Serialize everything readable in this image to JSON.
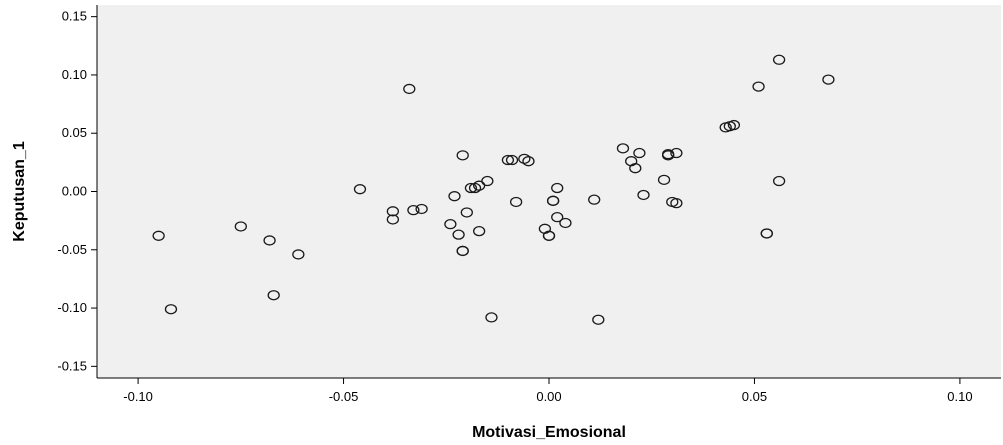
{
  "chart_data": {
    "type": "scatter",
    "xlabel": "Motivasi_Emosional",
    "ylabel": "Keputusan_1",
    "xlim": [
      -0.11,
      0.11
    ],
    "ylim": [
      -0.16,
      0.16
    ],
    "x_ticks": [
      "-0.10",
      "-0.05",
      "0.00",
      "0.05",
      "0.10"
    ],
    "x_tick_values": [
      -0.1,
      -0.05,
      0.0,
      0.05,
      0.1
    ],
    "y_ticks": [
      "0.15",
      "0.10",
      "0.05",
      "0.00",
      "-0.05",
      "-0.10",
      "-0.15"
    ],
    "y_tick_values": [
      0.15,
      0.1,
      0.05,
      0.0,
      -0.05,
      -0.1,
      -0.15
    ],
    "grid": false,
    "plot_background": "#f0f0f0",
    "marker_color": "#1a1a1a",
    "points": [
      {
        "x": -0.095,
        "y": -0.038
      },
      {
        "x": -0.092,
        "y": -0.101
      },
      {
        "x": -0.075,
        "y": -0.03
      },
      {
        "x": -0.068,
        "y": -0.042
      },
      {
        "x": -0.067,
        "y": -0.089
      },
      {
        "x": -0.061,
        "y": -0.054
      },
      {
        "x": -0.046,
        "y": 0.002
      },
      {
        "x": -0.038,
        "y": -0.017
      },
      {
        "x": -0.038,
        "y": -0.024
      },
      {
        "x": -0.034,
        "y": 0.088
      },
      {
        "x": -0.033,
        "y": -0.016
      },
      {
        "x": -0.031,
        "y": -0.015
      },
      {
        "x": -0.024,
        "y": -0.028
      },
      {
        "x": -0.023,
        "y": -0.004
      },
      {
        "x": -0.022,
        "y": -0.037
      },
      {
        "x": -0.021,
        "y": -0.051
      },
      {
        "x": -0.021,
        "y": -0.051
      },
      {
        "x": -0.021,
        "y": 0.031
      },
      {
        "x": -0.02,
        "y": -0.018
      },
      {
        "x": -0.019,
        "y": 0.003
      },
      {
        "x": -0.018,
        "y": 0.003
      },
      {
        "x": -0.017,
        "y": -0.034
      },
      {
        "x": -0.017,
        "y": 0.005
      },
      {
        "x": -0.015,
        "y": 0.009
      },
      {
        "x": -0.014,
        "y": -0.108
      },
      {
        "x": -0.01,
        "y": 0.027
      },
      {
        "x": -0.009,
        "y": 0.027
      },
      {
        "x": -0.008,
        "y": -0.009
      },
      {
        "x": -0.006,
        "y": 0.028
      },
      {
        "x": -0.005,
        "y": 0.026
      },
      {
        "x": -0.001,
        "y": -0.032
      },
      {
        "x": 0.0,
        "y": -0.038
      },
      {
        "x": 0.0,
        "y": -0.038
      },
      {
        "x": 0.001,
        "y": -0.008
      },
      {
        "x": 0.001,
        "y": -0.008
      },
      {
        "x": 0.002,
        "y": -0.022
      },
      {
        "x": 0.002,
        "y": 0.003
      },
      {
        "x": 0.004,
        "y": -0.027
      },
      {
        "x": 0.011,
        "y": -0.007
      },
      {
        "x": 0.012,
        "y": -0.11
      },
      {
        "x": 0.018,
        "y": 0.037
      },
      {
        "x": 0.02,
        "y": 0.026
      },
      {
        "x": 0.021,
        "y": 0.02
      },
      {
        "x": 0.022,
        "y": 0.033
      },
      {
        "x": 0.023,
        "y": -0.003
      },
      {
        "x": 0.028,
        "y": 0.01
      },
      {
        "x": 0.029,
        "y": 0.031
      },
      {
        "x": 0.029,
        "y": 0.032
      },
      {
        "x": 0.03,
        "y": -0.009
      },
      {
        "x": 0.031,
        "y": -0.01
      },
      {
        "x": 0.031,
        "y": 0.033
      },
      {
        "x": 0.043,
        "y": 0.055
      },
      {
        "x": 0.044,
        "y": 0.056
      },
      {
        "x": 0.045,
        "y": 0.057
      },
      {
        "x": 0.051,
        "y": 0.09
      },
      {
        "x": 0.053,
        "y": -0.036
      },
      {
        "x": 0.053,
        "y": -0.036
      },
      {
        "x": 0.056,
        "y": 0.113
      },
      {
        "x": 0.056,
        "y": 0.009
      },
      {
        "x": 0.068,
        "y": 0.096
      }
    ]
  }
}
